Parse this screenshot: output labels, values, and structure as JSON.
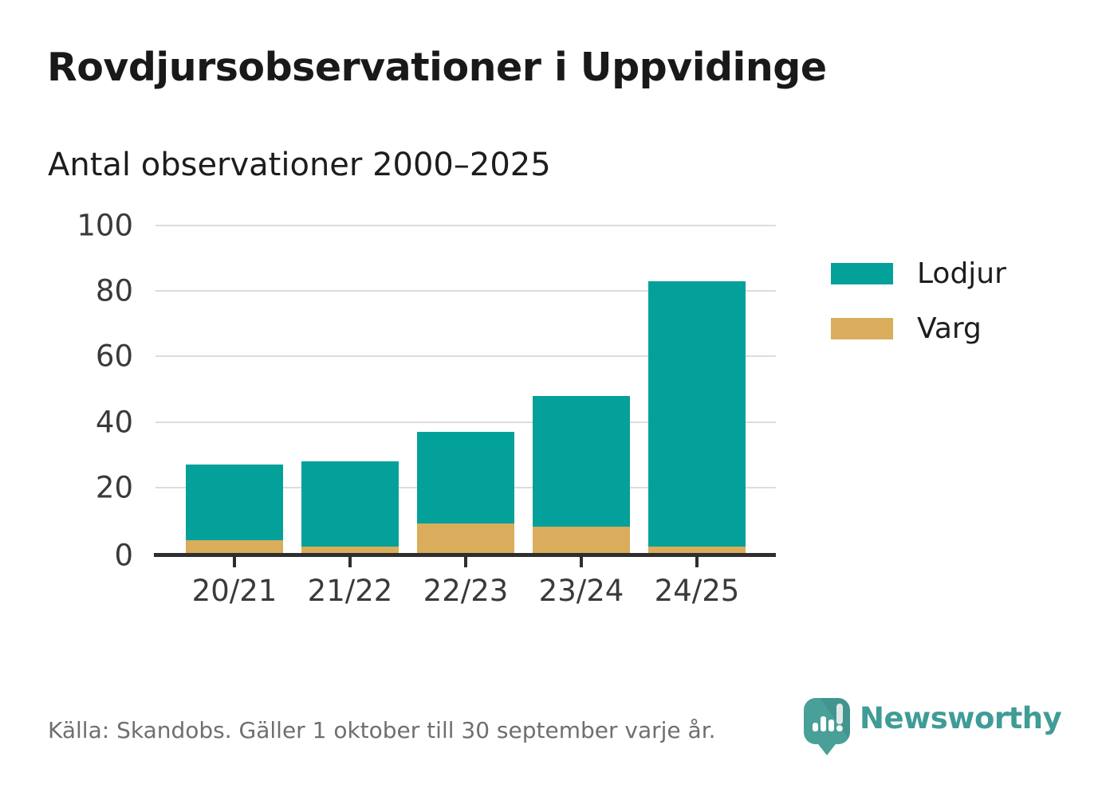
{
  "header": {
    "title": "Rovdjursobservationer i Uppvidinge",
    "subtitle": "Antal observationer 2000–2025"
  },
  "chart_data": {
    "type": "bar",
    "stacked": true,
    "title": "Rovdjursobservationer i Uppvidinge",
    "subtitle": "Antal observationer 2000–2025",
    "categories": [
      "20/21",
      "21/22",
      "22/23",
      "23/24",
      "24/25"
    ],
    "series": [
      {
        "name": "Varg",
        "color": "#d9ad5b",
        "values": [
          4,
          2,
          9,
          8,
          2
        ]
      },
      {
        "name": "Lodjur",
        "color": "#04a19a",
        "values": [
          23,
          26,
          28,
          40,
          81
        ]
      }
    ],
    "totals": [
      27,
      28,
      37,
      48,
      83
    ],
    "xlabel": "",
    "ylabel": "",
    "ylim": [
      0,
      100
    ],
    "yticks": [
      0,
      20,
      40,
      60,
      80,
      100
    ],
    "grid": "horizontal",
    "legend_position": "right"
  },
  "legend": {
    "items": [
      {
        "label": "Lodjur",
        "color": "#04a19a"
      },
      {
        "label": "Varg",
        "color": "#d9ad5b"
      }
    ]
  },
  "footer": {
    "source": "Källa: Skandobs. Gäller 1 oktober till 30 september varje år.",
    "brand": "Newsworthy"
  },
  "colors": {
    "lodjur": "#04a19a",
    "varg": "#d9ad5b",
    "axis": "#2e2e2e",
    "grid": "#dcdcdc",
    "text_dark": "#191919",
    "tick_text": "#3a3a3a",
    "source_text": "#6f6f6f",
    "brand_teal": "#3f9c96"
  }
}
